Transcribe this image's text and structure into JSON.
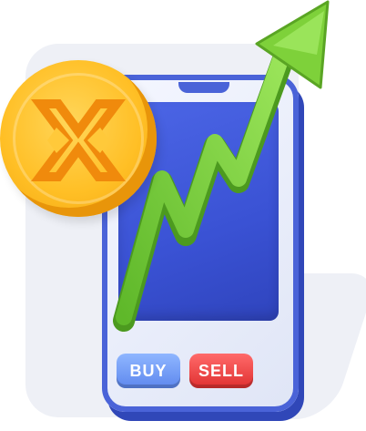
{
  "phone": {
    "buy_label": "BUY",
    "sell_label": "SELL"
  },
  "icons": {
    "coin": "crypto-coin-icon",
    "arrow": "trend-up-arrow-icon"
  },
  "colors": {
    "phone_blue": "#4a63d8",
    "screen_blue": "#3a52d4",
    "coin_gold": "#ffbf25",
    "arrow_green": "#7ed13a",
    "buy_blue": "#6f98f4",
    "sell_red": "#e83a3a"
  }
}
